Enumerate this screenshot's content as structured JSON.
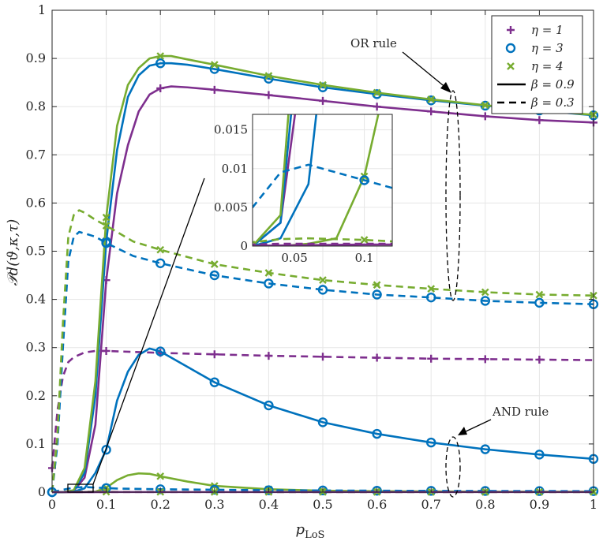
{
  "chart_data": {
    "type": "line",
    "xlabel": "p_LoS",
    "xlabel_main": "p",
    "xlabel_sub": "LoS",
    "ylabel": "𝒫d(ϑ,κ,τ)",
    "xlim": [
      0,
      1
    ],
    "ylim": [
      0,
      1
    ],
    "grid": true,
    "xticks": [
      0,
      0.1,
      0.2,
      0.3,
      0.4,
      0.5,
      0.6,
      0.7,
      0.8,
      0.9,
      1
    ],
    "xtick_labels": [
      "0",
      "0.1",
      "0.2",
      "0.3",
      "0.4",
      "0.5",
      "0.6",
      "0.7",
      "0.8",
      "0.9",
      "1"
    ],
    "yticks": [
      0,
      0.1,
      0.2,
      0.3,
      0.4,
      0.5,
      0.6,
      0.7,
      0.8,
      0.9,
      1
    ],
    "ytick_labels": [
      "0",
      "0.1",
      "0.2",
      "0.3",
      "0.4",
      "0.5",
      "0.6",
      "0.7",
      "0.8",
      "0.9",
      "1"
    ],
    "colors": {
      "eta1": "#7E2F8E",
      "eta3": "#0072BD",
      "eta4": "#77AC30"
    },
    "legend": {
      "position": "top-right",
      "entries": [
        {
          "label": "η = 1",
          "marker": "plus",
          "color": "#7E2F8E"
        },
        {
          "label": "η = 3",
          "marker": "circle",
          "color": "#0072BD"
        },
        {
          "label": "η = 4",
          "marker": "x",
          "color": "#77AC30"
        },
        {
          "label": "β = 0.9",
          "line": "solid",
          "color": "#000000"
        },
        {
          "label": "β = 0.3",
          "line": "dashed",
          "color": "#000000"
        }
      ]
    },
    "annotations": {
      "or_rule": "OR rule",
      "and_rule": "AND rule"
    },
    "series": [
      {
        "name": "η=1, β=0.9, OR",
        "eta": 1,
        "dash": "solid",
        "color": "#7E2F8E",
        "marker": "plus",
        "x": [
          0,
          0.02,
          0.04,
          0.06,
          0.08,
          0.1,
          0.12,
          0.14,
          0.16,
          0.18,
          0.2,
          0.22,
          0.25,
          0.3,
          0.4,
          0.5,
          0.6,
          0.7,
          0.8,
          0.9,
          1.0
        ],
        "y": [
          0,
          0,
          0.003,
          0.03,
          0.14,
          0.44,
          0.62,
          0.72,
          0.79,
          0.825,
          0.838,
          0.842,
          0.84,
          0.835,
          0.824,
          0.812,
          0.8,
          0.79,
          0.78,
          0.772,
          0.767
        ],
        "marker_x": [
          0.1,
          0.2,
          0.3,
          0.4,
          0.5,
          0.6,
          0.7,
          0.8,
          0.9,
          1.0
        ]
      },
      {
        "name": "η=3, β=0.9, OR",
        "eta": 3,
        "dash": "solid",
        "color": "#0072BD",
        "marker": "circle",
        "x": [
          0,
          0.02,
          0.04,
          0.06,
          0.08,
          0.1,
          0.12,
          0.14,
          0.16,
          0.18,
          0.2,
          0.22,
          0.25,
          0.3,
          0.4,
          0.5,
          0.6,
          0.7,
          0.8,
          0.9,
          1.0
        ],
        "y": [
          0,
          0,
          0.003,
          0.04,
          0.2,
          0.52,
          0.71,
          0.82,
          0.865,
          0.885,
          0.89,
          0.89,
          0.887,
          0.878,
          0.858,
          0.84,
          0.826,
          0.813,
          0.802,
          0.792,
          0.782
        ],
        "marker_x": [
          0.1,
          0.2,
          0.3,
          0.4,
          0.5,
          0.6,
          0.7,
          0.8,
          0.9,
          1.0
        ]
      },
      {
        "name": "η=4, β=0.9, OR",
        "eta": 4,
        "dash": "solid",
        "color": "#77AC30",
        "marker": "x",
        "x": [
          0,
          0.02,
          0.04,
          0.06,
          0.08,
          0.1,
          0.12,
          0.14,
          0.16,
          0.18,
          0.2,
          0.22,
          0.25,
          0.3,
          0.4,
          0.5,
          0.6,
          0.7,
          0.8,
          0.9,
          1.0
        ],
        "y": [
          0,
          0,
          0.004,
          0.05,
          0.23,
          0.57,
          0.76,
          0.845,
          0.88,
          0.9,
          0.905,
          0.905,
          0.898,
          0.887,
          0.864,
          0.845,
          0.829,
          0.815,
          0.803,
          0.792,
          0.783
        ],
        "marker_x": [
          0.1,
          0.2,
          0.3,
          0.4,
          0.5,
          0.6,
          0.7,
          0.8,
          0.9,
          1.0
        ]
      },
      {
        "name": "η=1, β=0.3, OR",
        "eta": 1,
        "dash": "dashed",
        "color": "#7E2F8E",
        "marker": "plus",
        "x": [
          0,
          0.01,
          0.02,
          0.03,
          0.04,
          0.06,
          0.08,
          0.1,
          0.2,
          0.3,
          0.4,
          0.5,
          0.6,
          0.7,
          0.8,
          0.9,
          1.0
        ],
        "y": [
          0.05,
          0.17,
          0.24,
          0.27,
          0.28,
          0.29,
          0.293,
          0.293,
          0.289,
          0.286,
          0.283,
          0.281,
          0.279,
          0.277,
          0.276,
          0.275,
          0.274
        ],
        "marker_x": [
          0,
          0.1,
          0.2,
          0.3,
          0.4,
          0.5,
          0.6,
          0.7,
          0.8,
          0.9
        ]
      },
      {
        "name": "η=3, β=0.3, OR",
        "eta": 3,
        "dash": "dashed",
        "color": "#0072BD",
        "marker": "circle",
        "x": [
          0,
          0.01,
          0.02,
          0.03,
          0.04,
          0.05,
          0.06,
          0.08,
          0.1,
          0.15,
          0.2,
          0.3,
          0.4,
          0.5,
          0.6,
          0.7,
          0.8,
          0.9,
          1.0
        ],
        "y": [
          0,
          0.1,
          0.3,
          0.48,
          0.53,
          0.54,
          0.537,
          0.53,
          0.517,
          0.49,
          0.475,
          0.45,
          0.433,
          0.42,
          0.41,
          0.404,
          0.397,
          0.393,
          0.39
        ],
        "marker_x": [
          0,
          0.1,
          0.2,
          0.3,
          0.4,
          0.5,
          0.6,
          0.7,
          0.8,
          0.9,
          1.0
        ]
      },
      {
        "name": "η=4, β=0.3, OR",
        "eta": 4,
        "dash": "dashed",
        "color": "#77AC30",
        "marker": "x",
        "x": [
          0,
          0.01,
          0.02,
          0.03,
          0.04,
          0.05,
          0.06,
          0.08,
          0.1,
          0.15,
          0.2,
          0.3,
          0.4,
          0.5,
          0.6,
          0.7,
          0.8,
          0.9,
          1.0
        ],
        "y": [
          0,
          0.12,
          0.35,
          0.53,
          0.575,
          0.585,
          0.58,
          0.565,
          0.553,
          0.52,
          0.503,
          0.473,
          0.455,
          0.44,
          0.43,
          0.422,
          0.415,
          0.41,
          0.408
        ],
        "marker_x": [
          0.1,
          0.2,
          0.3,
          0.4,
          0.5,
          0.6,
          0.7,
          0.8,
          0.9,
          1.0
        ]
      },
      {
        "name": "η=3, β=0.9, AND",
        "eta": 3,
        "dash": "solid",
        "color": "#0072BD",
        "marker": "circle",
        "x": [
          0,
          0.02,
          0.04,
          0.06,
          0.08,
          0.1,
          0.12,
          0.14,
          0.16,
          0.18,
          0.2,
          0.25,
          0.3,
          0.4,
          0.5,
          0.6,
          0.7,
          0.8,
          0.9,
          1.0
        ],
        "y": [
          0,
          0,
          0.001,
          0.008,
          0.04,
          0.088,
          0.19,
          0.25,
          0.285,
          0.298,
          0.292,
          0.26,
          0.228,
          0.18,
          0.145,
          0.121,
          0.103,
          0.089,
          0.078,
          0.069
        ],
        "marker_x": [
          0.1,
          0.2,
          0.3,
          0.4,
          0.5,
          0.6,
          0.7,
          0.8,
          0.9,
          1.0
        ]
      },
      {
        "name": "η=4, β=0.9, AND",
        "eta": 4,
        "dash": "solid",
        "color": "#77AC30",
        "marker": "x",
        "x": [
          0,
          0.04,
          0.06,
          0.08,
          0.1,
          0.12,
          0.14,
          0.16,
          0.18,
          0.2,
          0.25,
          0.3,
          0.4,
          0.5,
          0.6,
          0.7,
          0.8,
          0.9,
          1.0
        ],
        "y": [
          0,
          0,
          0.0003,
          0.001,
          0.009,
          0.025,
          0.035,
          0.039,
          0.038,
          0.033,
          0.022,
          0.013,
          0.006,
          0.003,
          0.002,
          0.0015,
          0.001,
          0.001,
          0.001
        ],
        "marker_x": [
          0.1,
          0.2,
          0.3,
          0.4,
          0.5,
          0.6,
          0.7,
          0.8,
          0.9,
          1.0
        ]
      },
      {
        "name": "η=1, β=0.9, AND",
        "eta": 1,
        "dash": "solid",
        "color": "#7E2F8E",
        "marker": "plus",
        "x": [
          0,
          0.1,
          0.2,
          0.3,
          0.4,
          0.5,
          0.6,
          0.7,
          0.8,
          0.9,
          1.0
        ],
        "y": [
          0,
          0.0002,
          0.0002,
          0.0002,
          0.0002,
          0.0002,
          0.0002,
          0.0002,
          0.0002,
          0.0002,
          0.0002
        ],
        "marker_x": []
      },
      {
        "name": "η=3, β=0.3, AND",
        "eta": 3,
        "dash": "dashed",
        "color": "#0072BD",
        "marker": "circle",
        "x": [
          0,
          0.02,
          0.04,
          0.06,
          0.08,
          0.1,
          0.12,
          0.2,
          0.3,
          0.4,
          0.5,
          0.6,
          0.7,
          0.8,
          0.9,
          1.0
        ],
        "y": [
          0,
          0.005,
          0.0095,
          0.0105,
          0.0095,
          0.0085,
          0.0075,
          0.006,
          0.005,
          0.004,
          0.0035,
          0.003,
          0.0027,
          0.0025,
          0.0023,
          0.0022
        ],
        "marker_x": [
          0,
          0.1,
          0.2,
          0.3,
          0.4,
          0.5,
          0.6,
          0.7,
          0.8,
          0.9,
          1.0
        ]
      },
      {
        "name": "η=4, β=0.3, AND",
        "eta": 4,
        "dash": "dashed",
        "color": "#77AC30",
        "marker": "x",
        "x": [
          0,
          0.02,
          0.04,
          0.06,
          0.08,
          0.1,
          0.12,
          0.2,
          0.3,
          0.4,
          0.5,
          0.6,
          0.7,
          0.8,
          0.9,
          1.0
        ],
        "y": [
          0,
          0.0005,
          0.0009,
          0.001,
          0.0009,
          0.0008,
          0.0006,
          0.0005,
          0.0004,
          0.0004,
          0.0003,
          0.0003,
          0.0003,
          0.0003,
          0.0003,
          0.0003
        ],
        "marker_x": [
          0.1,
          0.2,
          0.3,
          0.4,
          0.5,
          0.6,
          0.7,
          0.8,
          0.9,
          1.0
        ]
      },
      {
        "name": "η=1, β=0.3, AND",
        "eta": 1,
        "dash": "dashed",
        "color": "#7E2F8E",
        "marker": "plus",
        "x": [
          0,
          0.02,
          0.04,
          0.06,
          0.1,
          0.2,
          0.3,
          0.4,
          0.5,
          0.6,
          0.7,
          0.8,
          0.9,
          1.0
        ],
        "y": [
          0,
          0.0002,
          0.0003,
          0.0003,
          0.0003,
          0.0003,
          0.0003,
          0.0003,
          0.0003,
          0.0003,
          0.0003,
          0.0003,
          0.0003,
          0.0003
        ],
        "marker_x": []
      }
    ],
    "inset": {
      "xlim": [
        0.02,
        0.12
      ],
      "ylim": [
        0,
        0.017
      ],
      "xticks": [
        0.05,
        0.1
      ],
      "xtick_labels": [
        "0.05",
        "0.1"
      ],
      "yticks": [
        0,
        0.005,
        0.01,
        0.015
      ],
      "ytick_labels": [
        "0",
        "0.005",
        "0.01",
        "0.015"
      ]
    }
  }
}
